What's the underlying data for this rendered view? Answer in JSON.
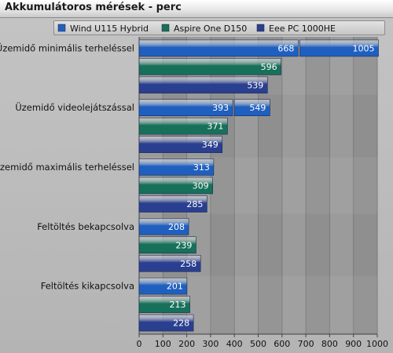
{
  "chart_data": {
    "type": "bar",
    "orientation": "horizontal",
    "title": "Akkumulátoros mérések - perc",
    "categories": [
      "Üzemidő minimális terheléssel",
      "Üzemidő videolejátszással",
      "Üzemidő maximális terheléssel",
      "Feltöltés bekapcsolva",
      "Feltöltés kikapcsolva"
    ],
    "series": [
      {
        "name": "Wind U115 Hybrid",
        "color": "#1f5fbf",
        "values": [
          668,
          393,
          313,
          208,
          201
        ],
        "extra_values": [
          1005,
          549,
          null,
          null,
          null
        ]
      },
      {
        "name": "Aspire One D150",
        "color": "#17705a",
        "values": [
          596,
          371,
          309,
          239,
          213
        ]
      },
      {
        "name": "Eee PC 1000HE",
        "color": "#2a3f8f",
        "values": [
          539,
          349,
          285,
          258,
          228
        ]
      }
    ],
    "xlim": [
      0,
      1000
    ],
    "xticks": [
      0,
      100,
      200,
      300,
      400,
      500,
      600,
      700,
      800,
      900,
      1000
    ],
    "grid": true,
    "legend_position": "top"
  }
}
